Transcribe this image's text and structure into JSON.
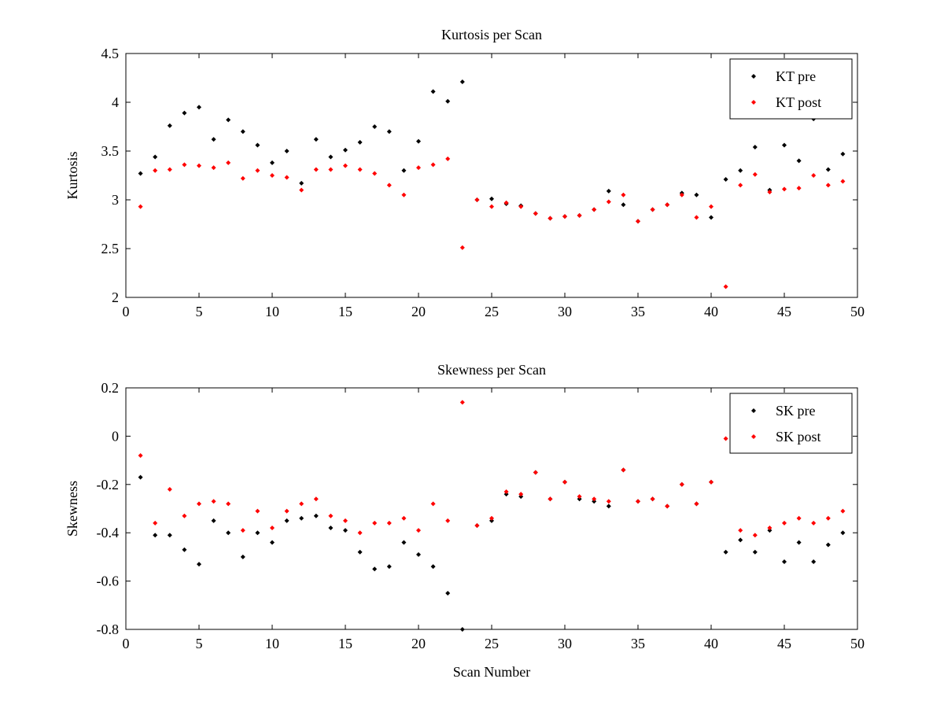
{
  "figure": {
    "background": "#ffffff",
    "axis_color": "#000000",
    "pre_color": "#000000",
    "post_color": "#ff0000"
  },
  "chart_data": [
    {
      "type": "scatter",
      "title": "Kurtosis per Scan",
      "xlabel": "",
      "ylabel": "Kurtosis",
      "xlim": [
        0,
        50
      ],
      "ylim": [
        2,
        4.5
      ],
      "xticks": [
        0,
        5,
        10,
        15,
        20,
        25,
        30,
        35,
        40,
        45,
        50
      ],
      "yticks": [
        2,
        2.5,
        3,
        3.5,
        4,
        4.5
      ],
      "grid": false,
      "legend_position": "top-right",
      "x": [
        1,
        2,
        3,
        4,
        5,
        6,
        7,
        8,
        9,
        10,
        11,
        12,
        13,
        14,
        15,
        16,
        17,
        18,
        19,
        20,
        21,
        22,
        23,
        24,
        25,
        26,
        27,
        28,
        29,
        30,
        31,
        32,
        33,
        34,
        35,
        36,
        37,
        38,
        39,
        40,
        41,
        42,
        43,
        44,
        45,
        46,
        47,
        48,
        49
      ],
      "series": [
        {
          "name": "KT pre",
          "color": "#000000",
          "values": [
            3.27,
            3.44,
            3.76,
            3.89,
            3.95,
            3.62,
            3.82,
            3.7,
            3.56,
            3.38,
            3.5,
            3.17,
            3.62,
            3.44,
            3.51,
            3.59,
            3.75,
            3.7,
            3.3,
            3.6,
            4.11,
            4.01,
            4.21,
            3.0,
            3.01,
            2.96,
            2.94,
            2.86,
            2.81,
            2.83,
            2.84,
            2.9,
            3.09,
            2.95,
            2.78,
            2.9,
            2.95,
            3.07,
            3.05,
            2.82,
            3.21,
            3.3,
            3.54,
            3.1,
            3.56,
            3.4,
            3.83,
            3.31,
            3.47
          ]
        },
        {
          "name": "KT post",
          "color": "#ff0000",
          "values": [
            2.93,
            3.3,
            3.31,
            3.36,
            3.35,
            3.33,
            3.38,
            3.22,
            3.3,
            3.25,
            3.23,
            3.1,
            3.31,
            3.31,
            3.35,
            3.31,
            3.27,
            3.15,
            3.05,
            3.33,
            3.36,
            3.42,
            2.51,
            3.0,
            2.93,
            2.97,
            2.93,
            2.86,
            2.81,
            2.83,
            2.84,
            2.9,
            2.98,
            3.05,
            2.78,
            2.9,
            2.95,
            3.05,
            2.82,
            2.93,
            2.11,
            3.15,
            3.26,
            3.08,
            3.11,
            3.12,
            3.25,
            3.15,
            3.19
          ]
        }
      ]
    },
    {
      "type": "scatter",
      "title": "Skewness per Scan",
      "xlabel": "Scan Number",
      "ylabel": "Skewness",
      "xlim": [
        0,
        50
      ],
      "ylim": [
        -0.8,
        0.2
      ],
      "xticks": [
        0,
        5,
        10,
        15,
        20,
        25,
        30,
        35,
        40,
        45,
        50
      ],
      "yticks": [
        -0.8,
        -0.6,
        -0.4,
        -0.2,
        0,
        0.2
      ],
      "grid": false,
      "legend_position": "top-right",
      "x": [
        1,
        2,
        3,
        4,
        5,
        6,
        7,
        8,
        9,
        10,
        11,
        12,
        13,
        14,
        15,
        16,
        17,
        18,
        19,
        20,
        21,
        22,
        23,
        24,
        25,
        26,
        27,
        28,
        29,
        30,
        31,
        32,
        33,
        34,
        35,
        36,
        37,
        38,
        39,
        40,
        41,
        42,
        43,
        44,
        45,
        46,
        47,
        48,
        49
      ],
      "series": [
        {
          "name": "SK pre",
          "color": "#000000",
          "values": [
            -0.17,
            -0.41,
            -0.41,
            -0.47,
            -0.53,
            -0.35,
            -0.4,
            -0.5,
            -0.4,
            -0.44,
            -0.35,
            -0.34,
            -0.33,
            -0.38,
            -0.39,
            -0.48,
            -0.55,
            -0.54,
            -0.44,
            -0.49,
            -0.54,
            -0.65,
            -0.8,
            -0.37,
            -0.35,
            -0.24,
            -0.25,
            -0.15,
            -0.26,
            -0.19,
            -0.26,
            -0.27,
            -0.29,
            -0.14,
            -0.27,
            -0.26,
            -0.29,
            -0.2,
            -0.28,
            -0.19,
            -0.48,
            -0.43,
            -0.48,
            -0.39,
            -0.52,
            -0.44,
            -0.52,
            -0.45,
            -0.4
          ]
        },
        {
          "name": "SK post",
          "color": "#ff0000",
          "values": [
            -0.08,
            -0.36,
            -0.22,
            -0.33,
            -0.28,
            -0.27,
            -0.28,
            -0.39,
            -0.31,
            -0.38,
            -0.31,
            -0.28,
            -0.26,
            -0.33,
            -0.35,
            -0.4,
            -0.36,
            -0.36,
            -0.34,
            -0.39,
            -0.28,
            -0.35,
            0.14,
            -0.37,
            -0.34,
            -0.23,
            -0.24,
            -0.15,
            -0.26,
            -0.19,
            -0.25,
            -0.26,
            -0.27,
            -0.14,
            -0.27,
            -0.26,
            -0.29,
            -0.2,
            -0.28,
            -0.19,
            -0.01,
            -0.39,
            -0.41,
            -0.38,
            -0.36,
            -0.34,
            -0.36,
            -0.34,
            -0.31
          ]
        }
      ]
    }
  ]
}
